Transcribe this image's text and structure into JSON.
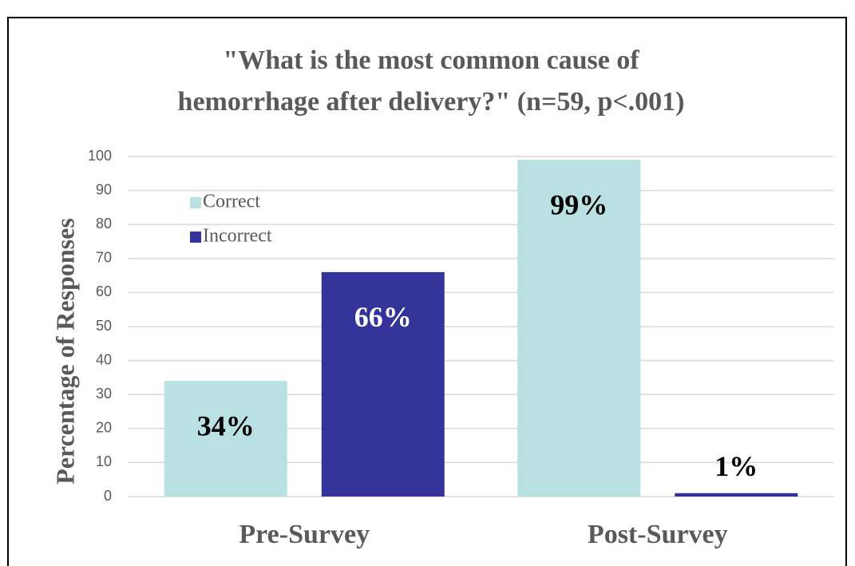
{
  "chart_data": {
    "type": "bar",
    "title": [
      "\"What is the most common cause of",
      "hemorrhage after delivery?\" (n=59, p<.001)"
    ],
    "y_label": "Percentage of Responses",
    "categories": [
      "Pre-Survey",
      "Post-Survey"
    ],
    "series": [
      {
        "name": "Correct",
        "color": "#b9e0e2",
        "values": [
          34,
          99
        ],
        "value_labels": [
          "34%",
          "99%"
        ]
      },
      {
        "name": "Incorrect",
        "color": "#333399",
        "values": [
          66,
          1
        ],
        "value_labels": [
          "66%",
          "1%"
        ]
      }
    ],
    "ylim": [
      0,
      100
    ],
    "yticks": [
      0,
      10,
      20,
      30,
      40,
      50,
      60,
      70,
      80,
      90,
      100
    ],
    "grid": true,
    "legend": "upper left"
  }
}
